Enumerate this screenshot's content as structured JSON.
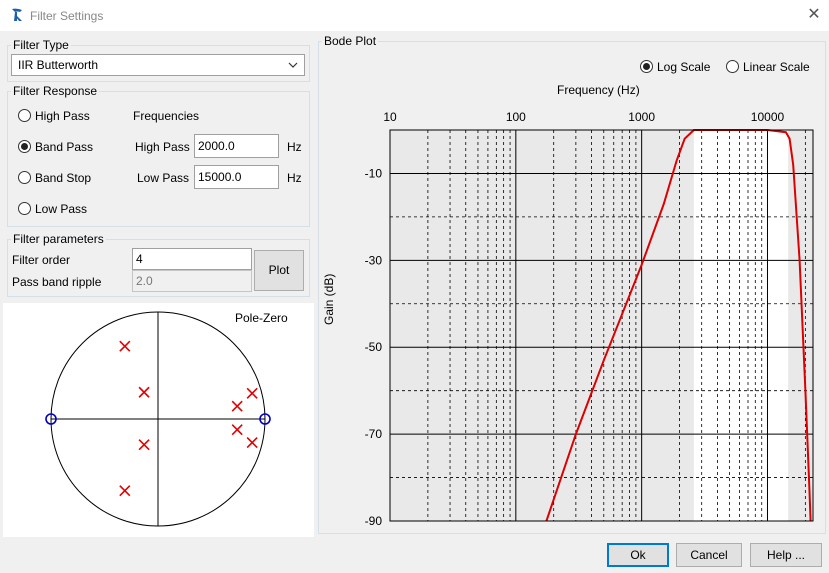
{
  "window": {
    "title": "Filter Settings",
    "close_icon": "close-icon"
  },
  "filter_type": {
    "legend": "Filter Type",
    "selected": "IIR Butterworth"
  },
  "filter_response": {
    "legend": "Filter Response",
    "options": [
      "High Pass",
      "Band Pass",
      "Band Stop",
      "Low Pass"
    ],
    "selected_index": 1,
    "frequencies_label": "Frequencies",
    "high_pass_label": "High Pass",
    "high_pass_value": "2000.0",
    "low_pass_label": "Low Pass",
    "low_pass_value": "15000.0",
    "unit": "Hz"
  },
  "filter_parameters": {
    "legend": "Filter parameters",
    "order_label": "Filter order",
    "order_value": "4",
    "ripple_label": "Pass band ripple",
    "ripple_value": "2.0",
    "plot_button": "Plot"
  },
  "pole_zero": {
    "title": "Pole-Zero",
    "poles": [
      [
        -0.31,
        0.68
      ],
      [
        -0.13,
        0.25
      ],
      [
        -0.13,
        -0.24
      ],
      [
        -0.31,
        -0.67
      ],
      [
        0.74,
        0.12
      ],
      [
        0.88,
        0.24
      ],
      [
        0.74,
        -0.1
      ],
      [
        0.88,
        -0.22
      ]
    ],
    "zeros": [
      [
        -1,
        0
      ],
      [
        1,
        0
      ]
    ]
  },
  "bode": {
    "legend": "Bode Plot",
    "scale_options": [
      "Log Scale",
      "Linear Scale"
    ],
    "scale_selected": 0,
    "xlabel": "Frequency (Hz)",
    "ylabel": "Gain (dB)"
  },
  "chart_data": {
    "type": "line",
    "title": "",
    "xlabel": "Frequency (Hz)",
    "ylabel": "Gain (dB)",
    "xscale": "log",
    "xlim": [
      10,
      23000
    ],
    "ylim": [
      -90,
      0
    ],
    "xticks": [
      "10",
      "100",
      "1000",
      "10000"
    ],
    "yticks": [
      "-10",
      "-30",
      "-50",
      "-70",
      "-90"
    ],
    "grid": true,
    "series": [
      {
        "color": "#dd0000",
        "x": [
          175,
          300,
          500,
          1000,
          1500,
          1900,
          2200,
          2600,
          5000,
          10000,
          14000,
          15000,
          16000,
          18000,
          20000,
          21500,
          22000
        ],
        "y": [
          -90,
          -70,
          -53,
          -31,
          -17,
          -7,
          -2,
          0,
          0,
          0,
          -0.5,
          -2,
          -8,
          -30,
          -60,
          -82,
          -90
        ]
      }
    ]
  },
  "footer": {
    "ok": "Ok",
    "cancel": "Cancel",
    "help": "Help ..."
  }
}
